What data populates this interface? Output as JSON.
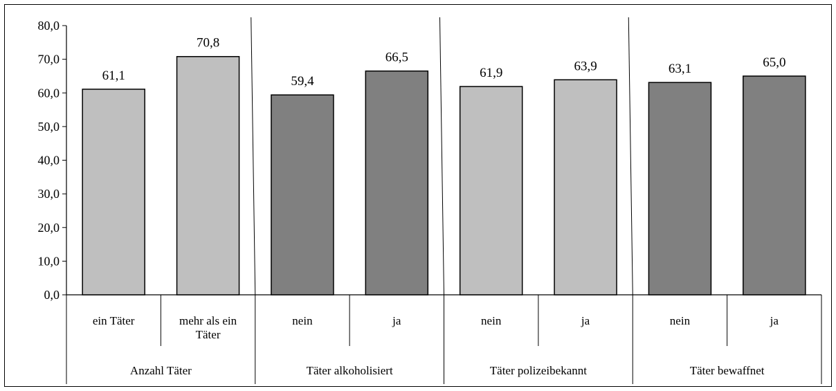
{
  "chart_data": {
    "type": "bar",
    "ylim": [
      0,
      80
    ],
    "y_ticks": [
      "0,0",
      "10,0",
      "20,0",
      "30,0",
      "40,0",
      "50,0",
      "60,0",
      "70,0",
      "80,0"
    ],
    "grid": false,
    "bar_colors": {
      "light": "#bfbfbf",
      "dark": "#808080"
    },
    "groups": [
      {
        "label": "Anzahl Täter",
        "color": "light",
        "categories": [
          [
            "ein Täter"
          ],
          [
            "mehr als ein",
            "Täter"
          ]
        ],
        "values": [
          61.1,
          70.8
        ],
        "value_labels": [
          "61,1",
          "70,8"
        ]
      },
      {
        "label": "Täter alkoholisiert",
        "color": "dark",
        "categories": [
          [
            "nein"
          ],
          [
            "ja"
          ]
        ],
        "values": [
          59.4,
          66.5
        ],
        "value_labels": [
          "59,4",
          "66,5"
        ]
      },
      {
        "label": "Täter polizeibekannt",
        "color": "light",
        "categories": [
          [
            "nein"
          ],
          [
            "ja"
          ]
        ],
        "values": [
          61.9,
          63.9
        ],
        "value_labels": [
          "61,9",
          "63,9"
        ]
      },
      {
        "label": "Täter bewaffnet",
        "color": "dark",
        "categories": [
          [
            "nein"
          ],
          [
            "ja"
          ]
        ],
        "values": [
          63.1,
          65.0
        ],
        "value_labels": [
          "63,1",
          "65,0"
        ]
      }
    ]
  }
}
